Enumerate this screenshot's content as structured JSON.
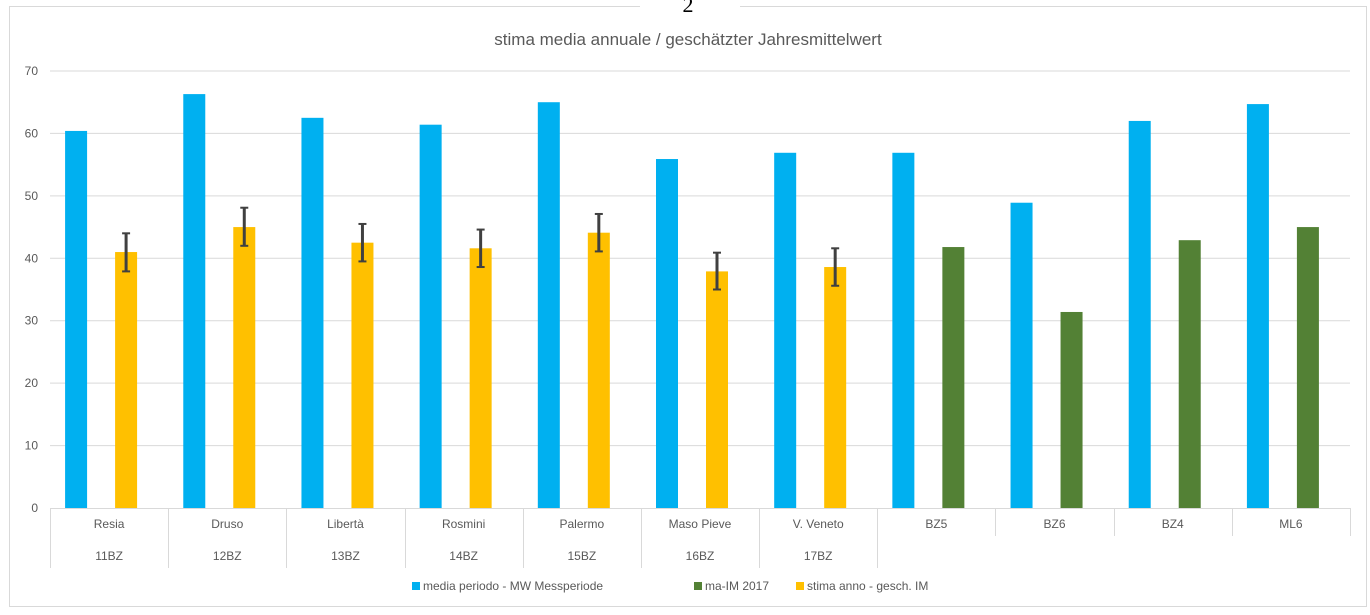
{
  "page_number": "2",
  "chart_data": {
    "type": "bar",
    "title": "stima media annuale / geschätzter Jahresmittelwert",
    "xlabel": "",
    "ylabel": "",
    "ylim": [
      0,
      70
    ],
    "yticks": [
      0,
      10,
      20,
      30,
      40,
      50,
      60,
      70
    ],
    "grid": true,
    "legend_position": "bottom",
    "categories": [
      {
        "name": "Resia",
        "code": "11BZ"
      },
      {
        "name": "Druso",
        "code": "12BZ"
      },
      {
        "name": "Libertà",
        "code": "13BZ"
      },
      {
        "name": "Rosmini",
        "code": "14BZ"
      },
      {
        "name": "Palermo",
        "code": "15BZ"
      },
      {
        "name": "Maso Pieve",
        "code": "16BZ"
      },
      {
        "name": "V. Veneto",
        "code": "17BZ"
      },
      {
        "name": "BZ5",
        "code": ""
      },
      {
        "name": "BZ6",
        "code": ""
      },
      {
        "name": "BZ4",
        "code": ""
      },
      {
        "name": "ML6",
        "code": ""
      }
    ],
    "series": [
      {
        "name": "media periodo - MW Messperiode",
        "color": "#00B0F0",
        "values": [
          60.4,
          66.3,
          62.5,
          61.4,
          65.0,
          55.9,
          56.9,
          56.9,
          48.9,
          62.0,
          64.7
        ]
      },
      {
        "name": "ma-IM 2017",
        "color": "#538135",
        "values": [
          null,
          null,
          null,
          null,
          null,
          null,
          null,
          41.8,
          31.4,
          42.9,
          45.0
        ]
      },
      {
        "name": "stima anno - gesch. IM",
        "color": "#FFC000",
        "values": [
          41.0,
          45.0,
          42.5,
          41.6,
          44.1,
          37.9,
          38.6,
          null,
          null,
          null,
          null
        ],
        "error_low": [
          37.9,
          42.0,
          39.5,
          38.6,
          41.1,
          35.0,
          35.6,
          null,
          null,
          null,
          null
        ],
        "error_high": [
          44.0,
          48.1,
          45.5,
          44.6,
          47.1,
          40.9,
          41.6,
          null,
          null,
          null,
          null
        ]
      }
    ],
    "legend": [
      {
        "label": "media periodo - MW Messperiode",
        "color": "#00B0F0"
      },
      {
        "label": "ma-IM 2017",
        "color": "#538135"
      },
      {
        "label": "stima anno - gesch. IM",
        "color": "#FFC000"
      }
    ],
    "colors": {
      "grid": "#D9D9D9",
      "text": "#595959",
      "error_bar": "#404040"
    }
  }
}
